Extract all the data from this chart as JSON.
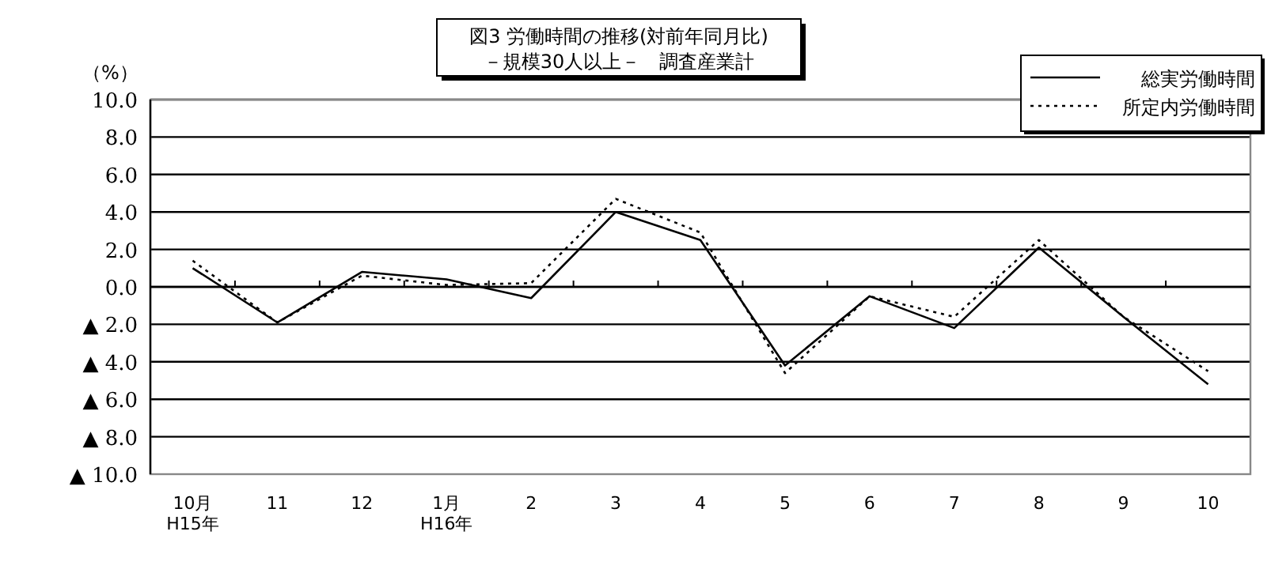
{
  "chart_data": {
    "type": "line",
    "title": "図3 労働時間の推移(対前年同月比)",
    "subtitle": "－規模30人以上－　調査産業計",
    "ylabel": "（%）",
    "categories": [
      "10月\nH15年",
      "11",
      "12",
      "1月\nH16年",
      "2",
      "3",
      "4",
      "5",
      "6",
      "7",
      "8",
      "9",
      "10"
    ],
    "series": [
      {
        "name": "総実労働時間",
        "color": "#000000",
        "line_style": "solid",
        "values": [
          1.0,
          -1.9,
          0.8,
          0.4,
          -0.6,
          4.0,
          2.5,
          -4.2,
          -0.5,
          -2.2,
          2.1,
          -1.6,
          -5.2
        ]
      },
      {
        "name": "所定内労働時間",
        "color": "#000000",
        "line_style": "dotted",
        "values": [
          1.4,
          -1.9,
          0.6,
          0.1,
          0.2,
          4.7,
          2.9,
          -4.6,
          -0.5,
          -1.6,
          2.5,
          -1.6,
          -4.5
        ]
      }
    ],
    "ylim": [
      -10,
      10
    ],
    "yticks": [
      {
        "value": 10,
        "label": "10.0"
      },
      {
        "value": 8,
        "label": "8.0"
      },
      {
        "value": 6,
        "label": "6.0"
      },
      {
        "value": 4,
        "label": "4.0"
      },
      {
        "value": 2,
        "label": "2.0"
      },
      {
        "value": 0,
        "label": "0.0"
      },
      {
        "value": -2,
        "label": "▲ 2.0"
      },
      {
        "value": -4,
        "label": "▲ 4.0"
      },
      {
        "value": -6,
        "label": "▲ 6.0"
      },
      {
        "value": -8,
        "label": "▲ 8.0"
      },
      {
        "value": -10,
        "label": "▲ 10.0"
      }
    ],
    "grid": "y",
    "legend": "top right",
    "marker": "none"
  }
}
